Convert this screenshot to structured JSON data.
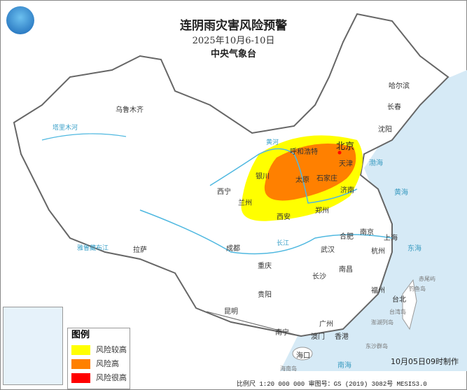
{
  "header": {
    "title": "连阴雨灾害风险预警",
    "date_range": "2025年10月6-10日",
    "organization": "中央气象台",
    "logo_icon": "cma-logo-icon"
  },
  "legend": {
    "title": "图例",
    "items": [
      {
        "label": "风险较高",
        "color": "#ffff00"
      },
      {
        "label": "风险高",
        "color": "#ff8000"
      },
      {
        "label": "风险很高",
        "color": "#ff0000"
      }
    ]
  },
  "footer": {
    "issued": "10月05日09时制作",
    "scale": "比例尺 1:20 000 000  审图号：GS (2019) 3082号 MESIS3.0"
  },
  "map": {
    "capital": "北京",
    "cities": [
      "乌鲁木齐",
      "哈尔滨",
      "长春",
      "沈阳",
      "呼和浩特",
      "天津",
      "石家庄",
      "太原",
      "济南",
      "银川",
      "西宁",
      "兰州",
      "西安",
      "郑州",
      "拉萨",
      "成都",
      "重庆",
      "武汉",
      "合肥",
      "南京",
      "上海",
      "杭州",
      "南昌",
      "长沙",
      "贵阳",
      "昆明",
      "福州",
      "台北",
      "南宁",
      "广州",
      "澳门",
      "香港",
      "海口"
    ],
    "seas": [
      "渤海",
      "黄海",
      "东海",
      "南海"
    ],
    "rivers": [
      "黄河",
      "长江",
      "塔里木河",
      "雅鲁藏布江"
    ],
    "islands": [
      "钓鱼岛",
      "赤尾屿",
      "台湾岛",
      "澎湖列岛",
      "东沙群岛",
      "海南岛"
    ],
    "colors": {
      "sea": "#d6eaf6",
      "land": "#ffffff",
      "border": "#777777",
      "river": "#4fb8e0"
    }
  }
}
